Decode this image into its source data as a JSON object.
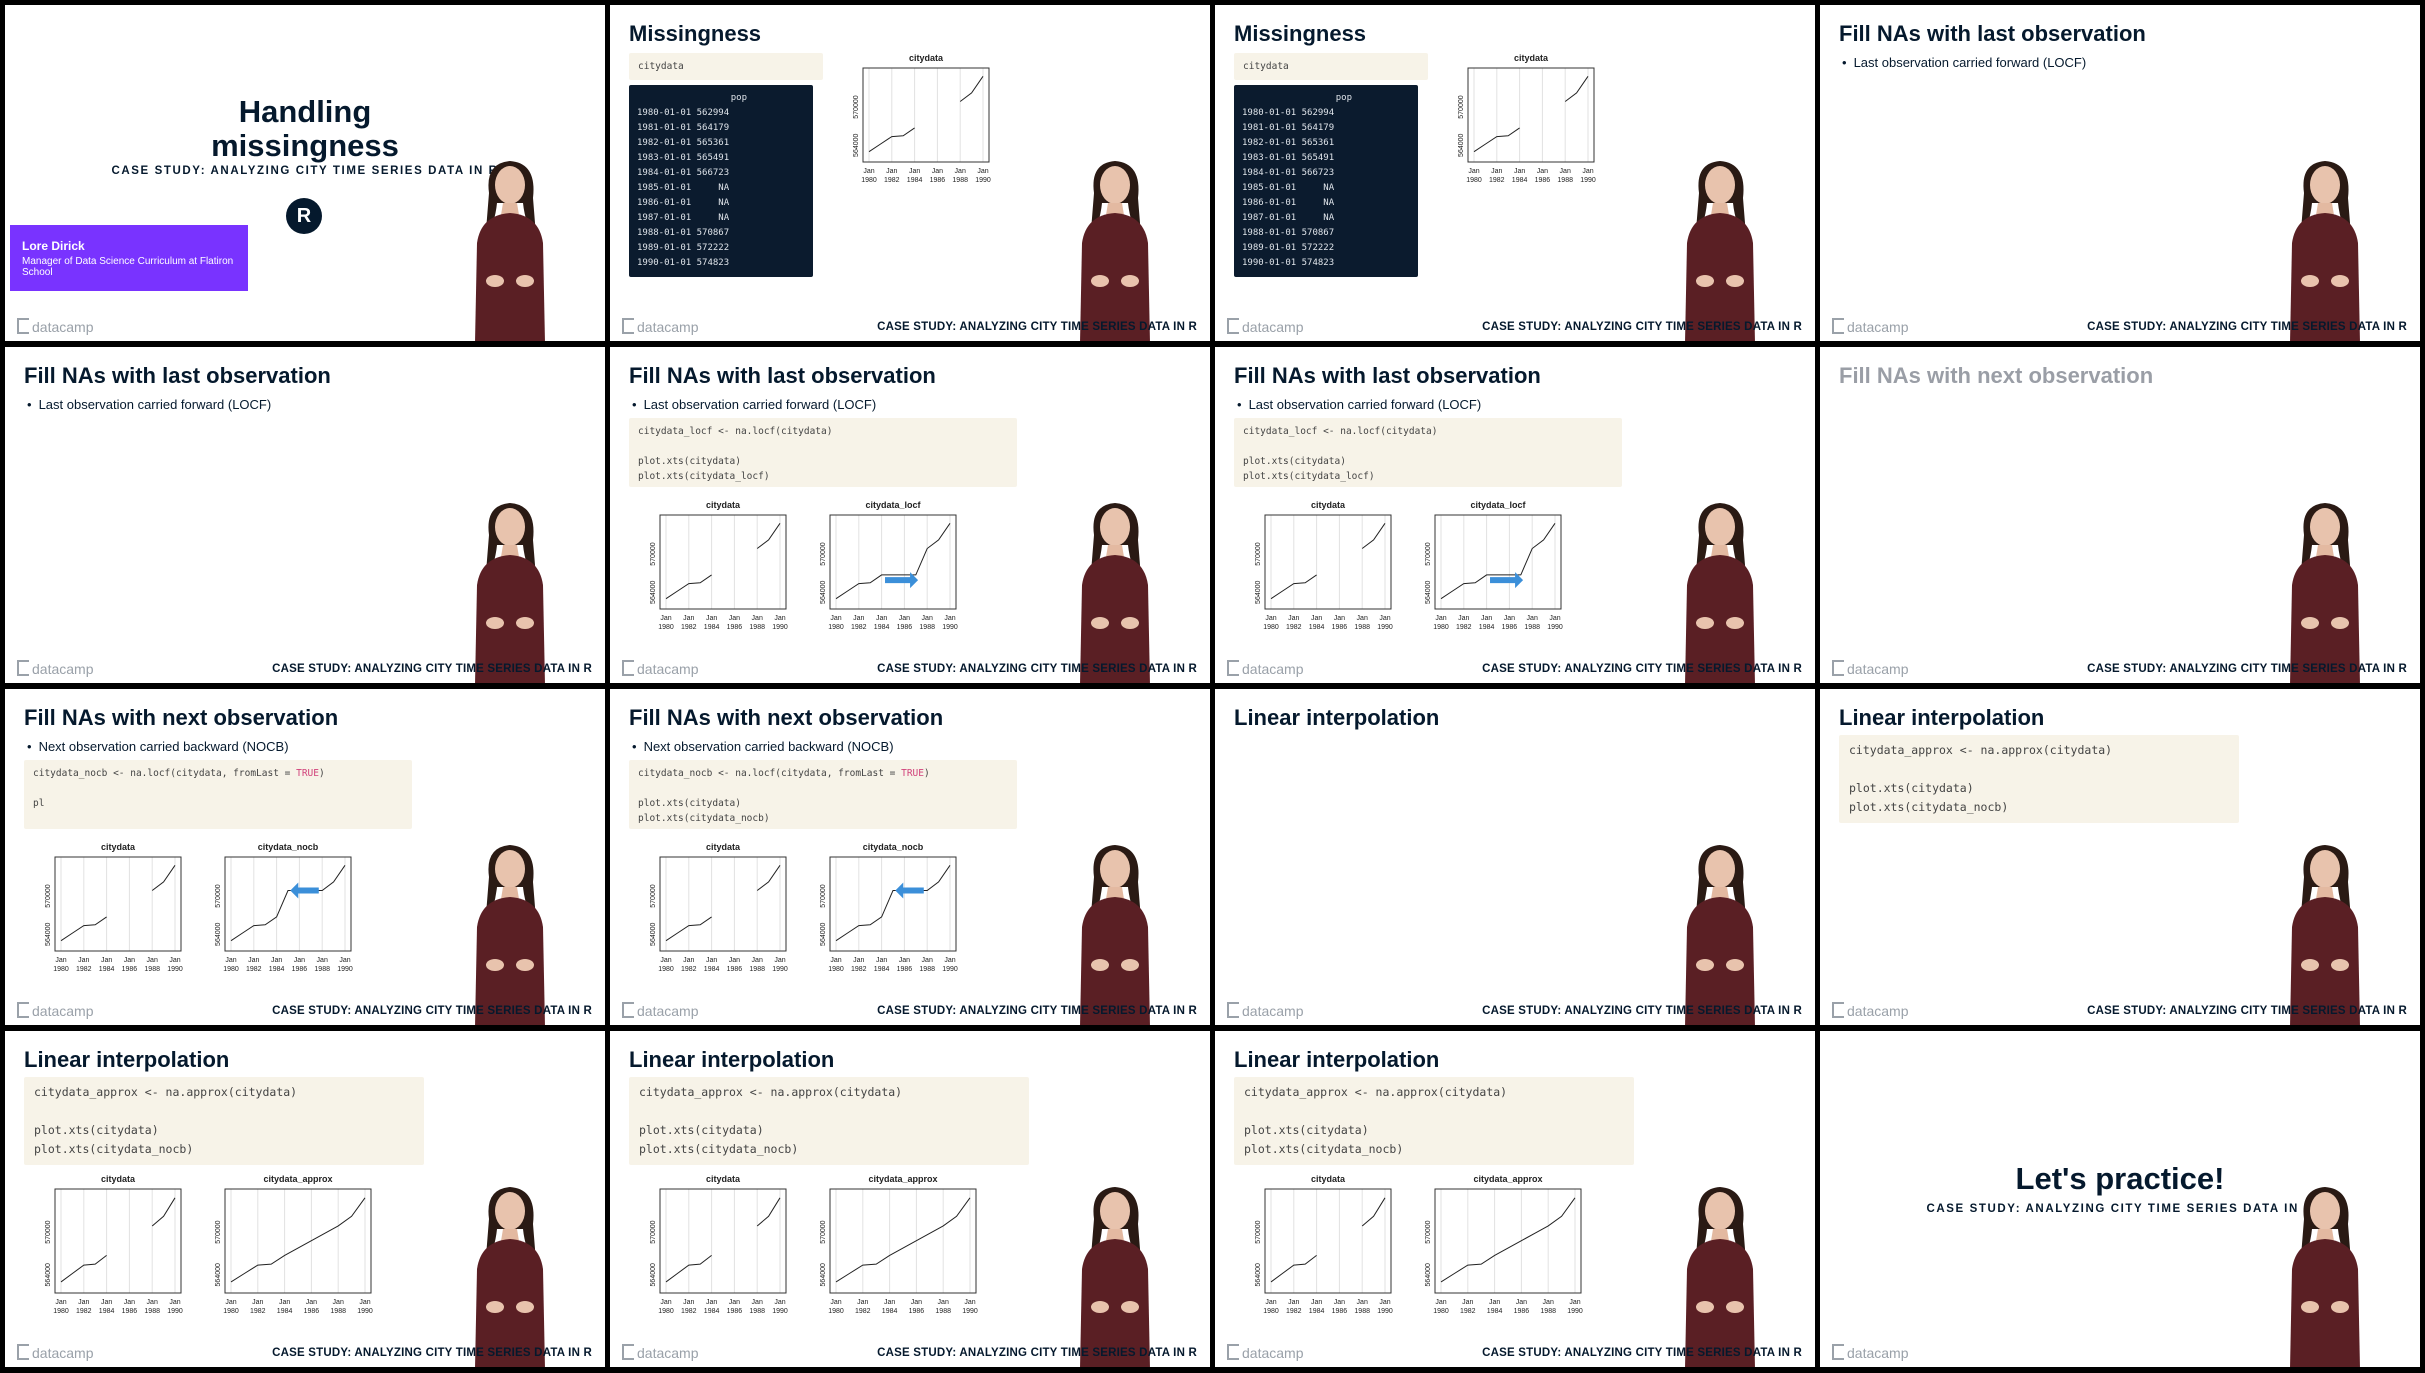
{
  "footer": {
    "logo": "datacamp",
    "course": "CASE STUDY: ANALYZING CITY TIME SERIES DATA IN R"
  },
  "title_slide": {
    "title_line1": "Handling",
    "title_line2": "missingness",
    "subtitle": "CASE STUDY: ANALYZING CITY TIME SERIES DATA IN R",
    "r_logo": "R",
    "presenter_name": "Lore Dirick",
    "presenter_role": "Manager of Data Science Curriculum at Flatiron School"
  },
  "titles": {
    "missingness": "Missingness",
    "locf": "Fill NAs with last observation",
    "nocb": "Fill NAs with next observation",
    "linear": "Linear interpolation"
  },
  "bullets": {
    "locf": "Last observation carried forward (LOCF)",
    "nocb": "Next observation carried backward (NOCB)"
  },
  "code": {
    "citydata": "citydata",
    "locf_1": "citydata_locf <- na.locf(citydata)",
    "plot_citydata": "plot.xts(citydata)",
    "plot_locf": "plot.xts(citydata_locf)",
    "nocb_pre": "citydata_nocb <- na.locf(citydata, fromLast = ",
    "true_kw": "TRUE",
    "nocb_post": ")",
    "partial_pl": "pl",
    "plot_nocb": "plot.xts(citydata_nocb)",
    "approx_1": "citydata_approx <- na.approx(citydata)"
  },
  "table": {
    "header": "pop",
    "rows": [
      {
        "date": "1980-01-01",
        "pop": "562994"
      },
      {
        "date": "1981-01-01",
        "pop": "564179"
      },
      {
        "date": "1982-01-01",
        "pop": "565361"
      },
      {
        "date": "1983-01-01",
        "pop": "565491"
      },
      {
        "date": "1984-01-01",
        "pop": "566723"
      },
      {
        "date": "1985-01-01",
        "pop": "NA"
      },
      {
        "date": "1986-01-01",
        "pop": "NA"
      },
      {
        "date": "1987-01-01",
        "pop": "NA"
      },
      {
        "date": "1988-01-01",
        "pop": "570867"
      },
      {
        "date": "1989-01-01",
        "pop": "572222"
      },
      {
        "date": "1990-01-01",
        "pop": "574823"
      }
    ]
  },
  "outro": {
    "title": "Let's practice!",
    "subtitle": "CASE STUDY: ANALYZING CITY TIME SERIES DATA IN R"
  },
  "colors": {
    "title": "#05192d",
    "accent_purple": "#7933ff",
    "code_bg": "#f7f3e8",
    "table_bg": "#0b1b2e",
    "arrow": "#3b8fd9"
  },
  "chart_data": [
    {
      "id": "citydata",
      "type": "line",
      "title": "citydata",
      "x": [
        "1980",
        "1981",
        "1982",
        "1983",
        "1984",
        "1985",
        "1986",
        "1987",
        "1988",
        "1989",
        "1990"
      ],
      "y": [
        562994,
        564179,
        565361,
        565491,
        566723,
        null,
        null,
        null,
        570867,
        572222,
        574823
      ],
      "x_ticks": [
        "Jan\n1980",
        "Jan\n1982",
        "Jan\n1984",
        "Jan\n1986",
        "Jan\n1988",
        "Jan\n1990"
      ],
      "y_ticks": [
        "564000",
        "570000"
      ],
      "ylim": [
        562000,
        575500
      ],
      "grid": true
    },
    {
      "id": "citydata_locf",
      "type": "line",
      "title": "citydata_locf",
      "x": [
        "1980",
        "1981",
        "1982",
        "1983",
        "1984",
        "1985",
        "1986",
        "1987",
        "1988",
        "1989",
        "1990"
      ],
      "y": [
        562994,
        564179,
        565361,
        565491,
        566723,
        566723,
        566723,
        566723,
        570867,
        572222,
        574823
      ],
      "x_ticks": [
        "Jan\n1980",
        "Jan\n1982",
        "Jan\n1984",
        "Jan\n1986",
        "Jan\n1988",
        "Jan\n1990"
      ],
      "y_ticks": [
        "564000",
        "570000"
      ],
      "ylim": [
        562000,
        575500
      ],
      "annotation": "arrow-right",
      "grid": true
    },
    {
      "id": "citydata_nocb",
      "type": "line",
      "title": "citydata_nocb",
      "x": [
        "1980",
        "1981",
        "1982",
        "1983",
        "1984",
        "1985",
        "1986",
        "1987",
        "1988",
        "1989",
        "1990"
      ],
      "y": [
        562994,
        564179,
        565361,
        565491,
        566723,
        570867,
        570867,
        570867,
        570867,
        572222,
        574823
      ],
      "x_ticks": [
        "Jan\n1980",
        "Jan\n1982",
        "Jan\n1984",
        "Jan\n1986",
        "Jan\n1988",
        "Jan\n1990"
      ],
      "y_ticks": [
        "564000",
        "570000"
      ],
      "ylim": [
        562000,
        575500
      ],
      "annotation": "arrow-left",
      "grid": true
    },
    {
      "id": "citydata_approx",
      "type": "line",
      "title": "citydata_approx",
      "x": [
        "1980",
        "1981",
        "1982",
        "1983",
        "1984",
        "1985",
        "1986",
        "1987",
        "1988",
        "1989",
        "1990"
      ],
      "y": [
        562994,
        564179,
        565361,
        565491,
        566723,
        567759,
        568795,
        569831,
        570867,
        572222,
        574823
      ],
      "x_ticks": [
        "Jan\n1980",
        "Jan\n1982",
        "Jan\n1984",
        "Jan\n1986",
        "Jan\n1988",
        "Jan\n1990"
      ],
      "y_ticks": [
        "564000",
        "570000"
      ],
      "ylim": [
        562000,
        575500
      ],
      "grid": true
    }
  ]
}
